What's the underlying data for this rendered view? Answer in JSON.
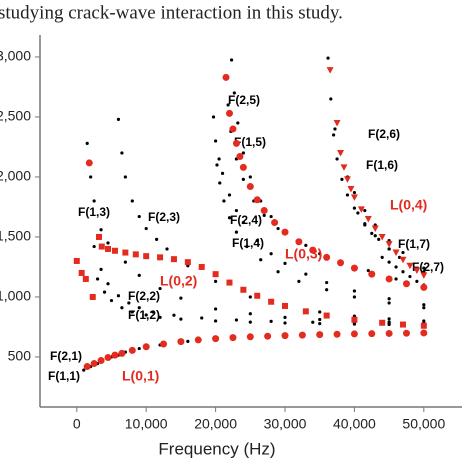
{
  "caption": "studying crack-wave interaction in this study.",
  "chart_data": {
    "type": "scatter",
    "xlabel": "Frequency (Hz)",
    "xlim": [
      -5300,
      55500
    ],
    "ylim": [
      83,
      3183
    ],
    "xticks": [
      0,
      {
        "value": 10000,
        "label": "10,000"
      },
      {
        "value": 20000,
        "label": "20,000"
      },
      {
        "value": 30000,
        "label": "30,000"
      },
      {
        "value": 40000,
        "label": "40,000"
      },
      {
        "value": 50000,
        "label": "50,000"
      }
    ],
    "yticks": [
      500,
      {
        "value": 1000,
        "label": "1,000"
      },
      {
        "value": 1500,
        "label": "1,500"
      },
      {
        "value": 2000,
        "label": "2,000"
      },
      {
        "value": 2500,
        "label": "2,500"
      },
      {
        "value": 3000,
        "label": "3,000"
      }
    ],
    "series": [
      {
        "name": "F(1,1)",
        "color": "#000000",
        "marker": "dot",
        "x": [
          1000,
          2000,
          3000,
          4500,
          6000,
          8000,
          10000,
          15000,
          20000,
          25000,
          30000,
          35000,
          40000,
          45000,
          50000
        ],
        "values": [
          390,
          420,
          445,
          485,
          515,
          550,
          580,
          625,
          650,
          665,
          675,
          683,
          690,
          694,
          698
        ]
      },
      {
        "name": "F(2,1)",
        "color": "#000000",
        "marker": "dot",
        "x": [
          1500,
          2500,
          3500,
          5000,
          7000,
          9000,
          12000,
          16000,
          20000,
          25000,
          30000,
          35000,
          40000,
          45000,
          50000
        ],
        "values": [
          410,
          435,
          465,
          500,
          540,
          570,
          600,
          630,
          652,
          667,
          677,
          685,
          691,
          695,
          699
        ]
      },
      {
        "name": "F(1,2)",
        "color": "#000000",
        "marker": "dot",
        "x": [
          3000,
          4000,
          5000,
          6500,
          8000,
          10000,
          12000,
          15000,
          20000,
          25000,
          30000,
          35000,
          40000,
          45000,
          50000
        ],
        "values": [
          1150,
          1040,
          970,
          910,
          875,
          850,
          830,
          815,
          800,
          790,
          783,
          778,
          774,
          771,
          768
        ]
      },
      {
        "name": "F(2,2)",
        "color": "#000000",
        "marker": "dot",
        "x": [
          2500,
          3500,
          4500,
          6000,
          7500,
          9000,
          11000,
          14000,
          18000,
          23000,
          28000,
          34000,
          40000,
          45000,
          50000
        ],
        "values": [
          1420,
          1230,
          1110,
          1010,
          950,
          910,
          875,
          848,
          825,
          808,
          797,
          789,
          783,
          779,
          776
        ]
      },
      {
        "name": "F(1,3)",
        "color": "#000000",
        "marker": "dot",
        "x": [
          1500,
          2000,
          2500,
          3500,
          4500,
          5500,
          7000,
          9000,
          12000,
          15000,
          20000,
          25000,
          30000,
          35000,
          40000,
          45000,
          50000
        ],
        "values": [
          2280,
          2000,
          1800,
          1560,
          1450,
          1390,
          1290,
          1180,
          1070,
          990,
          900,
          860,
          830,
          812,
          800,
          792,
          785
        ]
      },
      {
        "name": "F(2,3)",
        "color": "#000000",
        "marker": "dot",
        "x": [
          6000,
          6500,
          7000,
          8000,
          9000,
          10000,
          11500,
          13000,
          16000,
          20000,
          25000,
          30000,
          35000,
          40000,
          45000,
          50000
        ],
        "values": [
          2480,
          2200,
          2000,
          1800,
          1670,
          1570,
          1480,
          1400,
          1260,
          1130,
          1000,
          920,
          875,
          840,
          818,
          800
        ]
      },
      {
        "name": "F(2,4)",
        "color": "#000000",
        "marker": "dot",
        "x": [
          19700,
          20000,
          20500,
          21000,
          22000,
          23000,
          24000,
          26000,
          28000,
          30000,
          33000,
          36000,
          40000,
          45000,
          50000
        ],
        "values": [
          2500,
          2300,
          2150,
          2030,
          1850,
          1720,
          1620,
          1470,
          1360,
          1280,
          1190,
          1120,
          1050,
          985,
          935
        ]
      },
      {
        "name": "F(1,4)",
        "color": "#000000",
        "marker": "dot",
        "x": [
          20200,
          20600,
          21200,
          22000,
          23000,
          24500,
          26500,
          29000,
          32000,
          36000,
          40000,
          45000,
          50000
        ],
        "values": [
          2100,
          1950,
          1800,
          1660,
          1540,
          1420,
          1310,
          1210,
          1130,
          1060,
          1000,
          950,
          910
        ]
      },
      {
        "name": "F(2,5)",
        "color": "#000000",
        "marker": "dot",
        "x": [
          22300,
          22700,
          23200,
          24000,
          25000,
          26500,
          28000,
          30000,
          33000,
          36000,
          40000,
          45000,
          50000
        ],
        "values": [
          2975,
          2700,
          2450,
          2200,
          2000,
          1800,
          1670,
          1550,
          1430,
          1340,
          1250,
          1160,
          1100
        ]
      },
      {
        "name": "F(1,5)",
        "color": "#000000",
        "marker": "dot",
        "x": [
          21800,
          22200,
          23000,
          24000,
          25500,
          27000,
          29000,
          32000,
          35000,
          38000,
          42000,
          46000,
          50000
        ],
        "values": [
          2600,
          2380,
          2150,
          1980,
          1800,
          1680,
          1570,
          1450,
          1360,
          1300,
          1220,
          1150,
          1090
        ]
      },
      {
        "name": "F(2,6)",
        "color": "#000000",
        "marker": "dot",
        "x": [
          36200,
          36600,
          37200,
          38000,
          39000,
          40000,
          41500,
          43000,
          45000,
          47000,
          50000
        ],
        "values": [
          2990,
          2650,
          2400,
          2200,
          2000,
          1870,
          1720,
          1600,
          1470,
          1370,
          1240
        ]
      },
      {
        "name": "F(1,6)",
        "color": "#000000",
        "marker": "dot",
        "x": [
          37000,
          37500,
          38200,
          39000,
          40000,
          41500,
          43000,
          45000,
          47000,
          50000
        ],
        "values": [
          2350,
          2150,
          1980,
          1850,
          1740,
          1610,
          1510,
          1400,
          1320,
          1210
        ]
      },
      {
        "name": "F(1,7)",
        "color": "#000000",
        "marker": "dot",
        "x": [
          40500,
          41500,
          42500,
          43500,
          45000,
          46500,
          48000,
          50000
        ],
        "values": [
          1700,
          1600,
          1530,
          1480,
          1400,
          1330,
          1270,
          1200
        ]
      },
      {
        "name": "F(2,7)",
        "color": "#000000",
        "marker": "dot",
        "x": [
          44000,
          45000,
          46000,
          47000,
          48000,
          49000,
          50000
        ],
        "values": [
          1330,
          1290,
          1250,
          1210,
          1170,
          1130,
          1090
        ]
      },
      {
        "name": "L(0,1)",
        "color": "#e32b1f",
        "marker": "circle",
        "x": [
          1500,
          2500,
          3500,
          4500,
          5500,
          6500,
          8000,
          10000,
          12500,
          15000,
          17500,
          20000,
          22500,
          25000,
          27500,
          30000,
          32500,
          35000,
          37500,
          40000,
          42500,
          45000,
          47500,
          50000
        ],
        "values": [
          420,
          445,
          470,
          495,
          515,
          530,
          555,
          585,
          608,
          628,
          642,
          653,
          661,
          668,
          673,
          678,
          682,
          686,
          689,
          692,
          694,
          696,
          698,
          700
        ]
      },
      {
        "name": "L(0,2)",
        "color": "#e32b1f",
        "marker": "square",
        "x": [
          0,
          700,
          1300,
          2300,
          3200,
          3600,
          4500,
          5500,
          7000,
          8500,
          10000,
          12000,
          14000,
          16000,
          18000,
          20000,
          22000,
          24000,
          26000,
          28000,
          30000,
          33000,
          36000,
          40000,
          44000,
          47000,
          50000
        ],
        "values": [
          1300,
          1200,
          1150,
          1000,
          1500,
          1420,
          1400,
          1385,
          1370,
          1355,
          1340,
          1330,
          1315,
          1290,
          1250,
          1190,
          1120,
          1060,
          1010,
          960,
          925,
          880,
          845,
          810,
          785,
          770,
          760
        ]
      },
      {
        "name": "L(0,3)",
        "color": "#e32b1f",
        "marker": "circle",
        "x": [
          1800,
          21500,
          22000,
          22500,
          23000,
          23500,
          24000,
          25000,
          26000,
          27000,
          28500,
          30000,
          32000,
          34000,
          36000,
          38000,
          40000,
          42500,
          45000,
          47500,
          50000
        ],
        "values": [
          2117,
          2830,
          2530,
          2400,
          2280,
          2170,
          2080,
          1920,
          1810,
          1720,
          1620,
          1540,
          1460,
          1390,
          1330,
          1285,
          1240,
          1190,
          1150,
          1110,
          1080
        ]
      },
      {
        "name": "L(0,4)",
        "color": "#e32b1f",
        "marker": "triangle",
        "x": [
          36500,
          37500,
          38000,
          38500,
          39000,
          39500,
          40000,
          41000,
          42000,
          43000,
          44000,
          45000,
          46000,
          47000,
          48000,
          49000,
          50000
        ],
        "values": [
          2890,
          2450,
          2200,
          2080,
          1980,
          1900,
          1830,
          1730,
          1650,
          1570,
          1500,
          1440,
          1370,
          1310,
          1260,
          1220,
          1180
        ]
      }
    ]
  }
}
